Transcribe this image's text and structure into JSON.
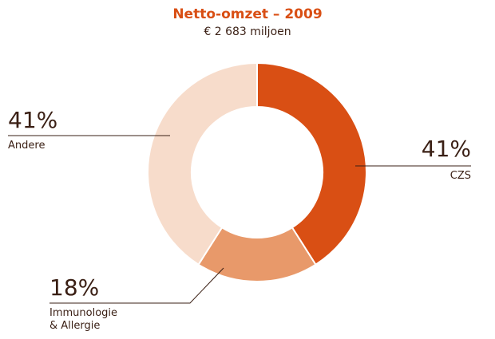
{
  "chart_data": {
    "type": "donut",
    "title": "Netto-omzet – 2009",
    "subtitle": "€ 2 683 miljoen",
    "categories": [
      "CZS",
      "Immunologie & Allergie",
      "Andere"
    ],
    "values": [
      41,
      18,
      41
    ],
    "value_labels": [
      "41%",
      "18%",
      "41%"
    ],
    "colors": [
      "#d94f14",
      "#e8996a",
      "#f7dccb"
    ]
  }
}
